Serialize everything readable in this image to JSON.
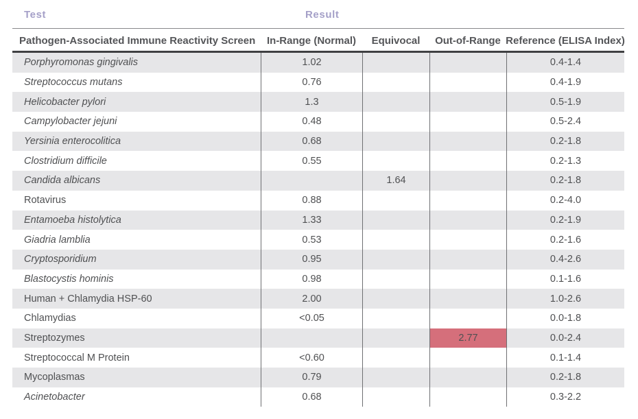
{
  "header": {
    "test_label": "Test",
    "result_label": "Result"
  },
  "table": {
    "columns": [
      "Pathogen-Associated Immune Reactivity Screen",
      "In-Range (Normal)",
      "Equivocal",
      "Out-of-Range",
      "Reference (ELISA Index)"
    ],
    "rows": [
      {
        "test": "Porphyromonas gingivalis",
        "italic": true,
        "in_range": "1.02",
        "equivocal": "",
        "out_of_range": "",
        "out_highlight": false,
        "reference": "0.4-1.4"
      },
      {
        "test": "Streptococcus mutans",
        "italic": true,
        "in_range": "0.76",
        "equivocal": "",
        "out_of_range": "",
        "out_highlight": false,
        "reference": "0.4-1.9"
      },
      {
        "test": "Helicobacter pylori",
        "italic": true,
        "in_range": "1.3",
        "equivocal": "",
        "out_of_range": "",
        "out_highlight": false,
        "reference": "0.5-1.9"
      },
      {
        "test": "Campylobacter jejuni",
        "italic": true,
        "in_range": "0.48",
        "equivocal": "",
        "out_of_range": "",
        "out_highlight": false,
        "reference": "0.5-2.4"
      },
      {
        "test": "Yersinia enterocolitica",
        "italic": true,
        "in_range": "0.68",
        "equivocal": "",
        "out_of_range": "",
        "out_highlight": false,
        "reference": "0.2-1.8"
      },
      {
        "test": "Clostridium difficile",
        "italic": true,
        "in_range": "0.55",
        "equivocal": "",
        "out_of_range": "",
        "out_highlight": false,
        "reference": "0.2-1.3"
      },
      {
        "test": "Candida albicans",
        "italic": true,
        "in_range": "",
        "equivocal": "1.64",
        "out_of_range": "",
        "out_highlight": false,
        "reference": "0.2-1.8"
      },
      {
        "test": "Rotavirus",
        "italic": false,
        "in_range": "0.88",
        "equivocal": "",
        "out_of_range": "",
        "out_highlight": false,
        "reference": "0.2-4.0"
      },
      {
        "test": "Entamoeba histolytica",
        "italic": true,
        "in_range": "1.33",
        "equivocal": "",
        "out_of_range": "",
        "out_highlight": false,
        "reference": "0.2-1.9"
      },
      {
        "test": "Giadria lamblia",
        "italic": true,
        "in_range": "0.53",
        "equivocal": "",
        "out_of_range": "",
        "out_highlight": false,
        "reference": "0.2-1.6"
      },
      {
        "test": "Cryptosporidium",
        "italic": true,
        "in_range": "0.95",
        "equivocal": "",
        "out_of_range": "",
        "out_highlight": false,
        "reference": "0.4-2.6"
      },
      {
        "test": "Blastocystis hominis",
        "italic": true,
        "in_range": "0.98",
        "equivocal": "",
        "out_of_range": "",
        "out_highlight": false,
        "reference": "0.1-1.6"
      },
      {
        "test": "Human + Chlamydia HSP-60",
        "italic": false,
        "in_range": "2.00",
        "equivocal": "",
        "out_of_range": "",
        "out_highlight": false,
        "reference": "1.0-2.6"
      },
      {
        "test": "Chlamydias",
        "italic": false,
        "in_range": "<0.05",
        "equivocal": "",
        "out_of_range": "",
        "out_highlight": false,
        "reference": "0.0-1.8"
      },
      {
        "test": "Streptozymes",
        "italic": false,
        "in_range": "",
        "equivocal": "",
        "out_of_range": "2.77",
        "out_highlight": true,
        "reference": "0.0-2.4"
      },
      {
        "test": "Streptococcal M Protein",
        "italic": false,
        "in_range": "<0.60",
        "equivocal": "",
        "out_of_range": "",
        "out_highlight": false,
        "reference": "0.1-1.4"
      },
      {
        "test": "Mycoplasmas",
        "italic": false,
        "in_range": "0.79",
        "equivocal": "",
        "out_of_range": "",
        "out_highlight": false,
        "reference": "0.2-1.8"
      },
      {
        "test": "Acinetobacter",
        "italic": true,
        "in_range": "0.68",
        "equivocal": "",
        "out_of_range": "",
        "out_highlight": false,
        "reference": "0.3-2.2"
      }
    ]
  },
  "colors": {
    "accent_purple": "#a5a0c8",
    "body_text": "#4f5052",
    "row_stripe": "#e6e6e8",
    "out_of_range_red": "#d56f7b",
    "thick_rule": "#3f4042"
  }
}
